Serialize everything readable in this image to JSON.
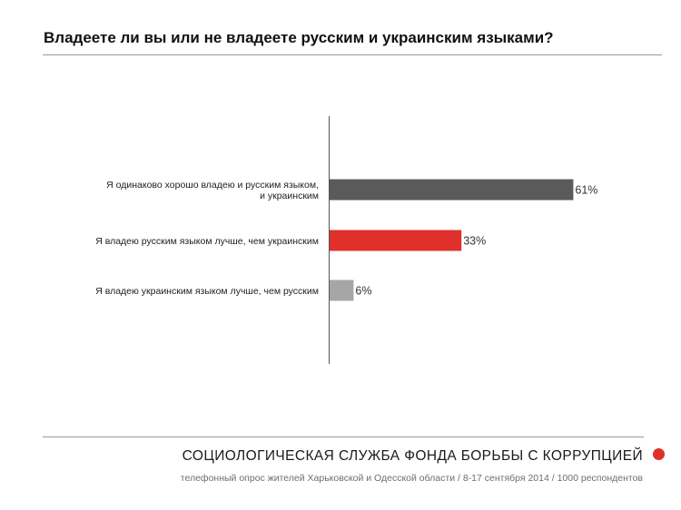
{
  "header": {
    "title": "Владеете ли вы или не владеете русским и украинским языками?"
  },
  "footer": {
    "organization": "СОЦИОЛОГИЧЕСКАЯ СЛУЖБА ФОНДА БОРЬБЫ С КОРРУПЦИЕЙ",
    "source": "телефонный опрос жителей Харьковской и Одесской области / 8-17 сентября 2014 / 1000 респондентов",
    "brand_color": "#e0302b"
  },
  "chart_data": {
    "type": "bar",
    "orientation": "horizontal",
    "title": "Владеете ли вы или не владеете русским и украинским языками?",
    "categories": [
      [
        "Я одинаково хорошо владею и русским языком,",
        "и украинским"
      ],
      [
        "Я владею русским языком лучше, чем украинским"
      ],
      [
        "Я владею украинским языком лучше, чем русским"
      ]
    ],
    "values": [
      61,
      33,
      6
    ],
    "value_labels": [
      "61%",
      "33%",
      "6%"
    ],
    "colors": [
      "#5a5a5a",
      "#e0302b",
      "#a6a6a6"
    ],
    "xlim": [
      0,
      100
    ],
    "grid": false,
    "legend": "none"
  }
}
